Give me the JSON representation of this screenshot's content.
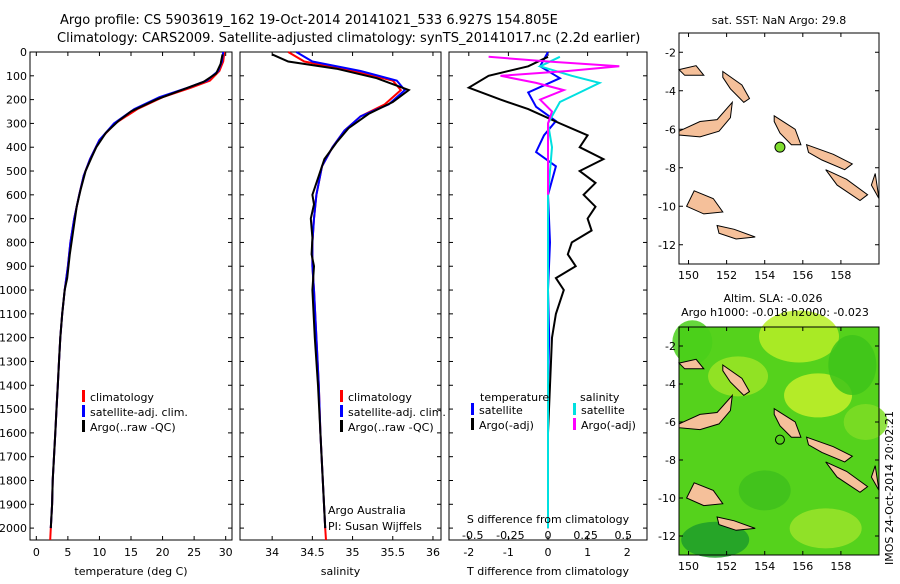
{
  "title_line1": "Argo profile: CS 5903619_162 19-Oct-2014 20141021_533 6.927S 154.805E",
  "title_line2": "Climatology: CARS2009. Satellite-adjusted climatology: synTS_20141017.nc (2.2d earlier)",
  "footer_stamp": "IMOS 24-Oct-2014 20:02:21",
  "colors": {
    "climatology": "#ff0000",
    "satellite": "#0000ff",
    "argo": "#000000",
    "satellite_sal": "#00e0e0",
    "argo_sal": "#ff00ff",
    "land": "#f5c09a",
    "float": "#7fdd2f"
  },
  "chart_data": [
    {
      "name": "temperature-profile",
      "type": "line",
      "xlabel": "temperature (deg C)",
      "xlim": [
        -1,
        31
      ],
      "xticks": [
        0,
        5,
        10,
        15,
        20,
        25,
        30
      ],
      "ylim": [
        2050,
        0
      ],
      "yticks": [
        0,
        100,
        200,
        300,
        400,
        500,
        600,
        700,
        800,
        900,
        1000,
        1100,
        1200,
        1300,
        1400,
        1500,
        1600,
        1700,
        1800,
        1900,
        2000
      ],
      "legend": [
        "climatology",
        "satellite-adj. clim.",
        "Argo(..raw -QC)"
      ],
      "series": [
        {
          "name": "climatology",
          "color": "#ff0000",
          "points": [
            [
              29.8,
              0
            ],
            [
              29.6,
              40
            ],
            [
              29,
              80
            ],
            [
              27.5,
              120
            ],
            [
              24.5,
              150
            ],
            [
              20,
              190
            ],
            [
              16,
              240
            ],
            [
              12.5,
              300
            ],
            [
              10,
              370
            ],
            [
              8.5,
              450
            ],
            [
              7.5,
              520
            ],
            [
              6.8,
              600
            ],
            [
              6,
              700
            ],
            [
              5.4,
              800
            ],
            [
              5,
              900
            ],
            [
              4.5,
              1000
            ],
            [
              4.1,
              1100
            ],
            [
              3.8,
              1200
            ],
            [
              3.6,
              1300
            ],
            [
              3.4,
              1400
            ],
            [
              3.2,
              1500
            ],
            [
              3,
              1600
            ],
            [
              2.8,
              1700
            ],
            [
              2.6,
              1800
            ],
            [
              2.5,
              1900
            ],
            [
              2.3,
              2000
            ],
            [
              2.2,
              2050
            ]
          ]
        },
        {
          "name": "satellite-adj. clim.",
          "color": "#0000ff",
          "points": [
            [
              29.6,
              0
            ],
            [
              29.4,
              40
            ],
            [
              28.8,
              80
            ],
            [
              27,
              120
            ],
            [
              24,
              150
            ],
            [
              19.5,
              190
            ],
            [
              15.5,
              240
            ],
            [
              12.3,
              300
            ],
            [
              10,
              370
            ],
            [
              8.5,
              450
            ],
            [
              7.5,
              520
            ],
            [
              6.8,
              600
            ],
            [
              6,
              700
            ],
            [
              5.4,
              800
            ],
            [
              5,
              900
            ],
            [
              4.5,
              1000
            ],
            [
              4.1,
              1100
            ],
            [
              3.8,
              1200
            ],
            [
              3.6,
              1300
            ],
            [
              3.4,
              1400
            ],
            [
              3.2,
              1500
            ],
            [
              3,
              1600
            ],
            [
              2.8,
              1700
            ],
            [
              2.6,
              1800
            ],
            [
              2.5,
              1900
            ],
            [
              2.3,
              2000
            ]
          ]
        },
        {
          "name": "Argo(..raw -QC)",
          "color": "#000000",
          "points": [
            [
              29.5,
              10
            ],
            [
              29.2,
              50
            ],
            [
              28.5,
              90
            ],
            [
              26.5,
              125
            ],
            [
              23,
              160
            ],
            [
              19,
              200
            ],
            [
              15,
              250
            ],
            [
              13,
              290
            ],
            [
              11,
              340
            ],
            [
              9.5,
              400
            ],
            [
              8.8,
              440
            ],
            [
              7.8,
              500
            ],
            [
              7,
              580
            ],
            [
              6.4,
              650
            ],
            [
              5.8,
              760
            ],
            [
              5.3,
              850
            ],
            [
              4.9,
              950
            ],
            [
              4.5,
              1000
            ],
            [
              4.1,
              1100
            ],
            [
              3.8,
              1200
            ],
            [
              3.6,
              1300
            ],
            [
              3.4,
              1400
            ],
            [
              3.2,
              1500
            ],
            [
              3,
              1600
            ],
            [
              2.8,
              1700
            ],
            [
              2.6,
              1800
            ],
            [
              2.5,
              1900
            ],
            [
              2.3,
              2000
            ]
          ]
        }
      ]
    },
    {
      "name": "salinity-profile",
      "type": "line",
      "xlabel": "salinity",
      "xlim": [
        33.6,
        36.1
      ],
      "xticks": [
        34,
        34.5,
        35,
        35.5,
        36
      ],
      "ylim": [
        2050,
        0
      ],
      "legend": [
        "climatology",
        "satellite-adj. clim.",
        "Argo(..raw -QC)"
      ],
      "annotation": [
        "Argo Australia",
        "PI: Susan Wijffels"
      ],
      "series": [
        {
          "name": "climatology",
          "color": "#ff0000",
          "points": [
            [
              34.2,
              0
            ],
            [
              34.4,
              40
            ],
            [
              35,
              80
            ],
            [
              35.5,
              120
            ],
            [
              35.6,
              160
            ],
            [
              35.4,
              220
            ],
            [
              35.1,
              270
            ],
            [
              34.9,
              330
            ],
            [
              34.75,
              400
            ],
            [
              34.62,
              480
            ],
            [
              34.55,
              600
            ],
            [
              34.52,
              700
            ],
            [
              34.5,
              800
            ],
            [
              34.5,
              900
            ],
            [
              34.52,
              1000
            ],
            [
              34.55,
              1200
            ],
            [
              34.58,
              1400
            ],
            [
              34.6,
              1600
            ],
            [
              34.63,
              1800
            ],
            [
              34.66,
              2000
            ],
            [
              34.67,
              2050
            ]
          ]
        },
        {
          "name": "satellite-adj. clim.",
          "color": "#0000ff",
          "points": [
            [
              34.3,
              0
            ],
            [
              34.5,
              40
            ],
            [
              35.1,
              80
            ],
            [
              35.55,
              120
            ],
            [
              35.65,
              160
            ],
            [
              35.45,
              220
            ],
            [
              35.1,
              270
            ],
            [
              34.9,
              330
            ],
            [
              34.75,
              400
            ],
            [
              34.62,
              480
            ],
            [
              34.55,
              600
            ],
            [
              34.52,
              700
            ],
            [
              34.5,
              800
            ],
            [
              34.5,
              900
            ],
            [
              34.52,
              1000
            ],
            [
              34.55,
              1200
            ],
            [
              34.58,
              1400
            ],
            [
              34.6,
              1600
            ],
            [
              34.63,
              1800
            ],
            [
              34.66,
              2000
            ]
          ]
        },
        {
          "name": "Argo(..raw -QC)",
          "color": "#000000",
          "points": [
            [
              34.0,
              10
            ],
            [
              34.2,
              40
            ],
            [
              34.8,
              70
            ],
            [
              35.3,
              110
            ],
            [
              35.7,
              160
            ],
            [
              35.5,
              210
            ],
            [
              35.2,
              260
            ],
            [
              34.95,
              320
            ],
            [
              34.8,
              380
            ],
            [
              34.65,
              450
            ],
            [
              34.58,
              520
            ],
            [
              34.5,
              600
            ],
            [
              34.52,
              640
            ],
            [
              34.48,
              700
            ],
            [
              34.5,
              780
            ],
            [
              34.49,
              850
            ],
            [
              34.52,
              900
            ],
            [
              34.5,
              1000
            ],
            [
              34.53,
              1200
            ],
            [
              34.57,
              1400
            ],
            [
              34.6,
              1600
            ],
            [
              34.63,
              1800
            ],
            [
              34.66,
              2000
            ]
          ]
        }
      ]
    },
    {
      "name": "difference-profile",
      "type": "line",
      "xlabel_bottom": "T difference from climatology",
      "xlabel_top": "S difference from climatology",
      "xlim": [
        -2.5,
        2.5
      ],
      "xticks": [
        -2,
        -1,
        0,
        1,
        2
      ],
      "top_ticks": [
        "-0.5",
        "-0.25",
        "0",
        "0.25",
        "0.5"
      ],
      "ylim": [
        2050,
        0
      ],
      "legend_left": {
        "heading": "temperature",
        "items": [
          "satellite",
          "Argo(-adj)"
        ]
      },
      "legend_right": {
        "heading": "salinity",
        "items": [
          "satellite",
          "Argo(-adj)"
        ]
      },
      "series": [
        {
          "name": "temperature satellite",
          "color": "#0000ff",
          "points": [
            [
              0,
              0
            ],
            [
              -0.2,
              60
            ],
            [
              0.3,
              110
            ],
            [
              -0.5,
              170
            ],
            [
              -0.3,
              230
            ],
            [
              0.2,
              290
            ],
            [
              -0.1,
              350
            ],
            [
              -0.3,
              420
            ],
            [
              0.2,
              480
            ],
            [
              0,
              600
            ],
            [
              0.05,
              800
            ],
            [
              0,
              1000
            ],
            [
              0.03,
              1200
            ],
            [
              0,
              1400
            ],
            [
              0,
              1600
            ],
            [
              0,
              1800
            ],
            [
              0,
              2000
            ]
          ]
        },
        {
          "name": "temperature Argo(-adj)",
          "color": "#000000",
          "points": [
            [
              0,
              20
            ],
            [
              -0.5,
              60
            ],
            [
              -1.5,
              100
            ],
            [
              -2,
              150
            ],
            [
              -1.2,
              200
            ],
            [
              -0.5,
              240
            ],
            [
              0.3,
              300
            ],
            [
              1,
              350
            ],
            [
              0.8,
              400
            ],
            [
              1.4,
              450
            ],
            [
              0.8,
              500
            ],
            [
              1.2,
              550
            ],
            [
              0.9,
              600
            ],
            [
              1.2,
              650
            ],
            [
              1,
              700
            ],
            [
              1.1,
              750
            ],
            [
              0.6,
              800
            ],
            [
              0.5,
              850
            ],
            [
              0.7,
              900
            ],
            [
              0.2,
              950
            ],
            [
              0.4,
              1000
            ],
            [
              0.2,
              1100
            ],
            [
              0.1,
              1200
            ],
            [
              0.05,
              1400
            ],
            [
              0,
              1600
            ],
            [
              0,
              1800
            ],
            [
              0,
              2000
            ]
          ]
        },
        {
          "name": "salinity satellite",
          "color": "#00e0e0",
          "points": [
            [
              0.3,
              20
            ],
            [
              -0.2,
              60
            ],
            [
              0.6,
              100
            ],
            [
              1.3,
              130
            ],
            [
              0.8,
              170
            ],
            [
              0.3,
              210
            ],
            [
              0,
              300
            ],
            [
              0.1,
              400
            ],
            [
              0,
              600
            ],
            [
              0,
              1000
            ],
            [
              0,
              2000
            ]
          ]
        },
        {
          "name": "salinity Argo(-adj)",
          "color": "#ff00ff",
          "points": [
            [
              -1.5,
              20
            ],
            [
              0,
              40
            ],
            [
              1.8,
              60
            ],
            [
              0.5,
              80
            ],
            [
              -1.2,
              100
            ],
            [
              -0.3,
              130
            ],
            [
              0.4,
              160
            ],
            [
              -0.2,
              200
            ],
            [
              0.1,
              250
            ],
            [
              0,
              300
            ],
            [
              0,
              400
            ],
            [
              0,
              600
            ]
          ]
        }
      ]
    },
    {
      "name": "sst-map",
      "type": "map",
      "title": "sat. SST: NaN Argo: 29.8",
      "xlim": [
        149.5,
        160
      ],
      "ylim": [
        -13,
        -1
      ],
      "xticks": [
        "150",
        "152",
        "154",
        "156",
        "158"
      ],
      "yticks": [
        "-2",
        "-4",
        "-6",
        "-8",
        "-10",
        "-12"
      ],
      "float_position": [
        154.8,
        -6.93
      ]
    },
    {
      "name": "sla-map",
      "type": "heatmap",
      "title_line1": "Altim. SLA: -0.026",
      "title_line2": "Argo h1000: -0.018 h2000: -0.023",
      "xlim": [
        149.5,
        160
      ],
      "ylim": [
        -13,
        -1
      ],
      "xticks": [
        "150",
        "152",
        "154",
        "156",
        "158"
      ],
      "yticks": [
        "-2",
        "-4",
        "-6",
        "-8",
        "-10",
        "-12"
      ],
      "float_position": [
        154.8,
        -6.93
      ]
    }
  ]
}
